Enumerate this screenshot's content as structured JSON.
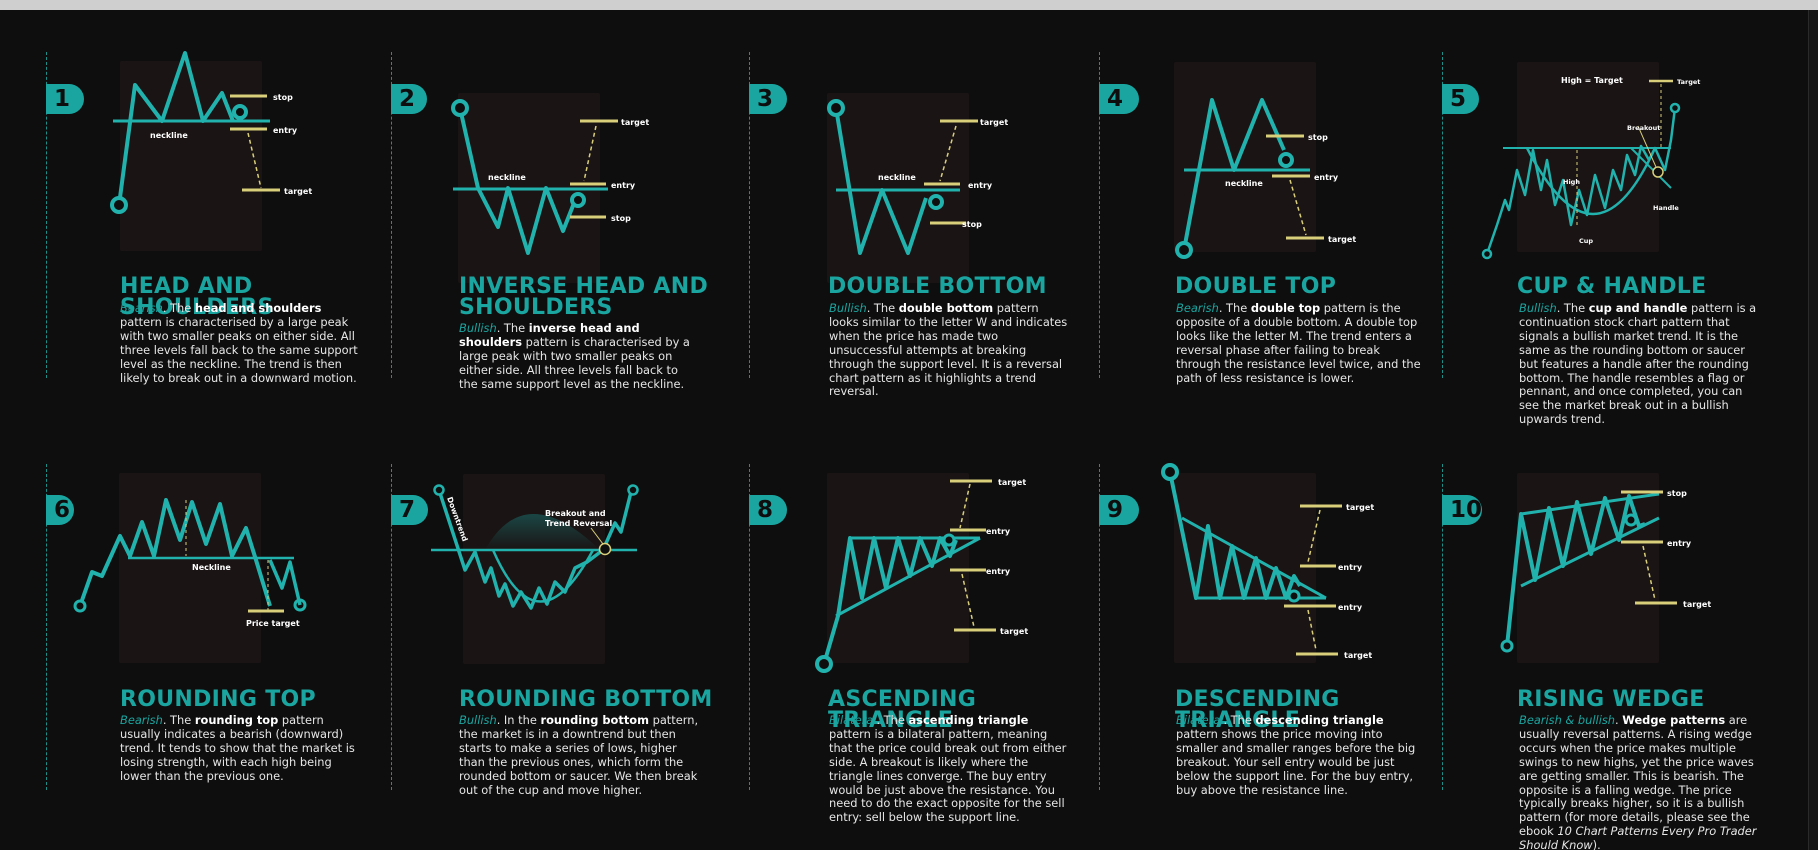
{
  "colors": {
    "accent": "#1ba5a0",
    "line": "#22b2ad",
    "level": "#d9cf7a",
    "panel": "#1a1414",
    "background": "#0e0e0e"
  },
  "patterns": [
    {
      "number": "1",
      "title": "HEAD AND SHOULDERS",
      "lead": "Bearish",
      "bold": "head and shoulders",
      "pre": ". The ",
      "post": " pattern is characterised by a large peak with two smaller peaks on either side. All three levels fall back to the same support level as the neckline. The trend is then likely to break out in a downward motion.",
      "labels": {
        "stop": "stop",
        "entry": "entry",
        "target": "target",
        "neckline": "neckline"
      }
    },
    {
      "number": "2",
      "title": "INVERSE HEAD AND SHOULDERS",
      "lead": "Bullish",
      "bold": "inverse head and shoulders",
      "pre": ". The ",
      "post": " pattern is characterised by a large peak with two smaller peaks on either side. All three levels fall back to the same support level as the neckline.",
      "labels": {
        "target": "target",
        "entry": "entry",
        "stop": "stop",
        "neckline": "neckline"
      }
    },
    {
      "number": "3",
      "title": "DOUBLE BOTTOM",
      "lead": "Bullish",
      "bold": "double bottom",
      "pre": ". The ",
      "post": " pattern looks similar to the letter W and indicates when the price has made two unsuccessful attempts at breaking through the support level. It is a reversal chart pattern as it highlights a trend reversal.",
      "labels": {
        "target": "target",
        "entry": "entry",
        "stop": "stop",
        "neckline": "neckline"
      }
    },
    {
      "number": "4",
      "title": "DOUBLE TOP",
      "lead": "Bearish",
      "bold": "double top",
      "pre": ". The ",
      "post": " pattern is the opposite of a double bottom. A double top looks like the letter M. The trend enters a reversal phase after failing to break through the resistance level twice, and the path of less resistance is lower.",
      "labels": {
        "stop": "stop",
        "entry": "entry",
        "target": "target",
        "neckline": "neckline"
      }
    },
    {
      "number": "5",
      "title": "CUP & HANDLE",
      "lead": "Bullish",
      "bold": "cup and handle",
      "pre": ". The ",
      "post": " pattern is a continuation stock chart pattern that signals a bullish market trend. It is the same as the rounding bottom or saucer but features a handle after the rounding bottom. The handle resembles a flag or pennant, and once completed, you can see the market break out in a bullish upwards trend.",
      "labels": {
        "high_target": "High = Target",
        "target": "Target",
        "breakout": "Breakout",
        "high": "High",
        "handle": "Handle",
        "cup": "Cup"
      }
    },
    {
      "number": "6",
      "title": "ROUNDING TOP",
      "lead": "Bearish",
      "bold": "rounding top",
      "pre": ". The ",
      "post": " pattern usually indicates a bearish (downward) trend. It tends to show that the market is losing strength, with each high being lower than the previous one.",
      "labels": {
        "neckline": "Neckline",
        "price_target": "Price target"
      }
    },
    {
      "number": "7",
      "title": "ROUNDING BOTTOM",
      "lead": "Bullish",
      "bold": "rounding bottom",
      "pre": ". In the ",
      "post": " pattern, the market is in a downtrend but then starts to make a series of lows, higher than the previous ones, which form the rounded bottom or saucer. We then break out of the cup and move higher.",
      "labels": {
        "downtrend": "Downtrend",
        "breakout_1": "Breakout and",
        "breakout_2": "Trend Reversal"
      }
    },
    {
      "number": "8",
      "title": "ASCENDING TRIANGLE",
      "lead": "Bilateral",
      "bold": "ascending triangle",
      "pre": ". The ",
      "post": " pattern is a bilateral pattern, meaning that the price could break out from either side. A breakout is likely where the triangle lines converge. The buy entry would be just above the resistance. You need to do the exact opposite for the sell entry: sell below the support line.",
      "labels": {
        "target_top": "target",
        "entry_top": "entry",
        "entry_bottom": "entry",
        "target_bottom": "target"
      }
    },
    {
      "number": "9",
      "title": "DESCENDING TRIANGLE",
      "lead": "Bilateral",
      "bold": "descending triangle",
      "pre": ". The ",
      "post": " pattern shows the price moving into smaller and smaller ranges before the big breakout. Your sell entry would be just below the support line. For the buy entry, buy above the resistance line.",
      "labels": {
        "target_top": "target",
        "entry_top": "entry",
        "entry_bottom": "entry",
        "target_bottom": "target"
      }
    },
    {
      "number": "10",
      "title": "RISING WEDGE",
      "lead": "Bearish & bullish",
      "bold": "Wedge patterns",
      "pre": ". ",
      "post": " are usually reversal patterns. A rising wedge occurs when the price makes multiple swings to new highs, yet the price waves are getting smaller. This is bearish. The opposite is a falling wedge. The price typically breaks higher, so it is a bullish pattern (for more details, please see the ebook ",
      "book": "10 Chart Patterns Every Pro Trader Should Know",
      "tail": ").",
      "labels": {
        "stop": "stop",
        "entry": "entry",
        "target": "target"
      }
    }
  ]
}
